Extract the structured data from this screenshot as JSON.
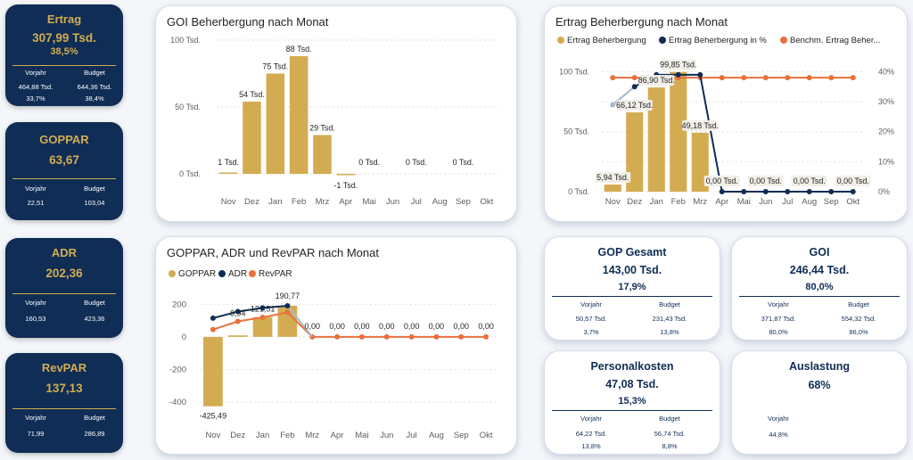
{
  "kpis": [
    {
      "title": "Ertrag",
      "value": "307,99 Tsd.",
      "pct": "38,5%",
      "prev_label": "Vorjahr",
      "budget_label": "Budget",
      "prev_value": "464,88 Tsd.",
      "budget_value": "644,36 Tsd.",
      "prev_pct": "33,7%",
      "budget_pct": "38,4%"
    },
    {
      "title": "GOPPAR",
      "value": "63,67",
      "pct": "",
      "prev_label": "Vorjahr",
      "budget_label": "Budget",
      "prev_value": "22,51",
      "budget_value": "103,04",
      "prev_pct": "",
      "budget_pct": ""
    },
    {
      "title": "ADR",
      "value": "202,36",
      "pct": "",
      "prev_label": "Vorjahr",
      "budget_label": "Budget",
      "prev_value": "160,53",
      "budget_value": "423,36",
      "prev_pct": "",
      "budget_pct": ""
    },
    {
      "title": "RevPAR",
      "value": "137,13",
      "pct": "",
      "prev_label": "Vorjahr",
      "budget_label": "Budget",
      "prev_value": "71,99",
      "budget_value": "286,89",
      "prev_pct": "",
      "budget_pct": ""
    }
  ],
  "tiles": [
    {
      "title": "GOP Gesamt",
      "value": "143,00 Tsd.",
      "pct": "17,9%",
      "prev_label": "Vorjahr",
      "budget_label": "Budget",
      "prev_value": "50,57 Tsd.",
      "budget_value": "231,43 Tsd.",
      "prev_pct": "3,7%",
      "budget_pct": "13,8%"
    },
    {
      "title": "GOI",
      "value": "246,44 Tsd.",
      "pct": "80,0%",
      "prev_label": "Vorjahr",
      "budget_label": "Budget",
      "prev_value": "371,87 Tsd.",
      "budget_value": "554,32 Tsd.",
      "prev_pct": "80,0%",
      "budget_pct": "86,0%"
    },
    {
      "title": "Personalkosten",
      "value": "47,08 Tsd.",
      "pct": "15,3%",
      "prev_label": "Vorjahr",
      "budget_label": "Budget",
      "prev_value": "64,22 Tsd.",
      "budget_value": "56,74 Tsd.",
      "prev_pct": "13,8%",
      "budget_pct": "8,8%"
    },
    {
      "title": "Auslastung",
      "value": "68%",
      "pct": "",
      "prev_label": "Vorjahr",
      "budget_label": "",
      "prev_value": "",
      "budget_value": "",
      "prev_pct": "44,8%",
      "budget_pct": ""
    }
  ],
  "colors": {
    "navy": "#0f2d55",
    "gold": "#d3ac52",
    "orange": "#e8713b",
    "lightblue": "#a9b8cc"
  },
  "chart_data": [
    {
      "type": "bar",
      "title": "GOI Beherbergung nach Monat",
      "categories": [
        "Nov",
        "Dez",
        "Jan",
        "Feb",
        "Mrz",
        "Apr",
        "Mai",
        "Jun",
        "Jul",
        "Aug",
        "Sep",
        "Okt"
      ],
      "values": [
        1,
        54,
        75,
        88,
        29,
        -1,
        0,
        0,
        0,
        0,
        0,
        null
      ],
      "value_labels": [
        "1 Tsd.",
        "54 Tsd.",
        "75 Tsd.",
        "88 Tsd.",
        "29 Tsd.",
        "-1 Tsd.",
        "0 Tsd.",
        "",
        "0 Tsd.",
        "",
        "0 Tsd.",
        ""
      ],
      "yticks": [
        "100 Tsd.",
        "50 Tsd.",
        "0 Tsd."
      ],
      "ytick_values": [
        100,
        50,
        0
      ],
      "ylim": [
        -5,
        100
      ],
      "unit": "Tsd.",
      "grid": true
    },
    {
      "type": "bar+line",
      "title": "Ertrag Beherbergung nach Monat",
      "categories": [
        "Nov",
        "Dez",
        "Jan",
        "Feb",
        "Mrz",
        "Apr",
        "Mai",
        "Jun",
        "Jul",
        "Aug",
        "Sep",
        "Okt"
      ],
      "legend": [
        "Ertrag Beherbergung",
        "Ertrag Beherbergung in %",
        "Benchm. Ertrag Beher..."
      ],
      "bar_values": [
        5.94,
        66.12,
        86.9,
        99.85,
        49.18,
        0,
        0,
        0,
        0,
        0,
        0,
        0
      ],
      "bar_labels": [
        "5,94 Tsd.",
        "66,12 Tsd.",
        "86,90 Tsd.",
        "99,85 Tsd.",
        "49,18 Tsd.",
        "0,00 Tsd.",
        "",
        "0,00 Tsd.",
        "",
        "0,00 Tsd.",
        "",
        "0,00 Tsd."
      ],
      "pct_values": [
        29,
        35,
        39,
        39,
        39,
        0,
        0,
        0,
        0,
        0,
        0,
        0
      ],
      "benchmark_pct": [
        38,
        38,
        38,
        38,
        38,
        38,
        38,
        38,
        38,
        38,
        38,
        38
      ],
      "yticks_left": [
        "100 Tsd.",
        "50 Tsd.",
        "0 Tsd."
      ],
      "ytick_values_left": [
        100,
        50,
        0
      ],
      "yticks_right": [
        "40%",
        "30%",
        "20%",
        "10%",
        "0%"
      ],
      "ytick_values_right": [
        40,
        30,
        20,
        10,
        0
      ],
      "ylim_left": [
        0,
        110
      ],
      "ylim_right": [
        0,
        44
      ]
    },
    {
      "type": "bar+line",
      "title": "GOPPAR, ADR und RevPAR nach Monat",
      "categories": [
        "Nov",
        "Dez",
        "Jan",
        "Feb",
        "Mrz",
        "Apr",
        "Mai",
        "Jun",
        "Jul",
        "Aug",
        "Sep",
        "Okt"
      ],
      "legend": [
        "GOPPAR",
        "ADR",
        "RevPAR"
      ],
      "goppar": [
        -425.49,
        8.94,
        121.51,
        190.77,
        0,
        0,
        0,
        0,
        0,
        0,
        0,
        0
      ],
      "adr": [
        115,
        155,
        178,
        190.77,
        0,
        0,
        0,
        0,
        0,
        0,
        0,
        0
      ],
      "revpar": [
        45,
        95,
        120,
        150,
        0,
        0,
        0,
        0,
        0,
        0,
        0,
        0
      ],
      "labels": [
        "-425,49",
        "8,94",
        "121,51",
        "190,77",
        "0,00",
        "0,00",
        "0,00",
        "0,00",
        "0,00",
        "0,00",
        "0,00",
        "0,00"
      ],
      "yticks": [
        "200",
        "0",
        "-200",
        "-400"
      ],
      "ytick_values": [
        200,
        0,
        -200,
        -400
      ],
      "ylim": [
        -460,
        240
      ]
    }
  ]
}
